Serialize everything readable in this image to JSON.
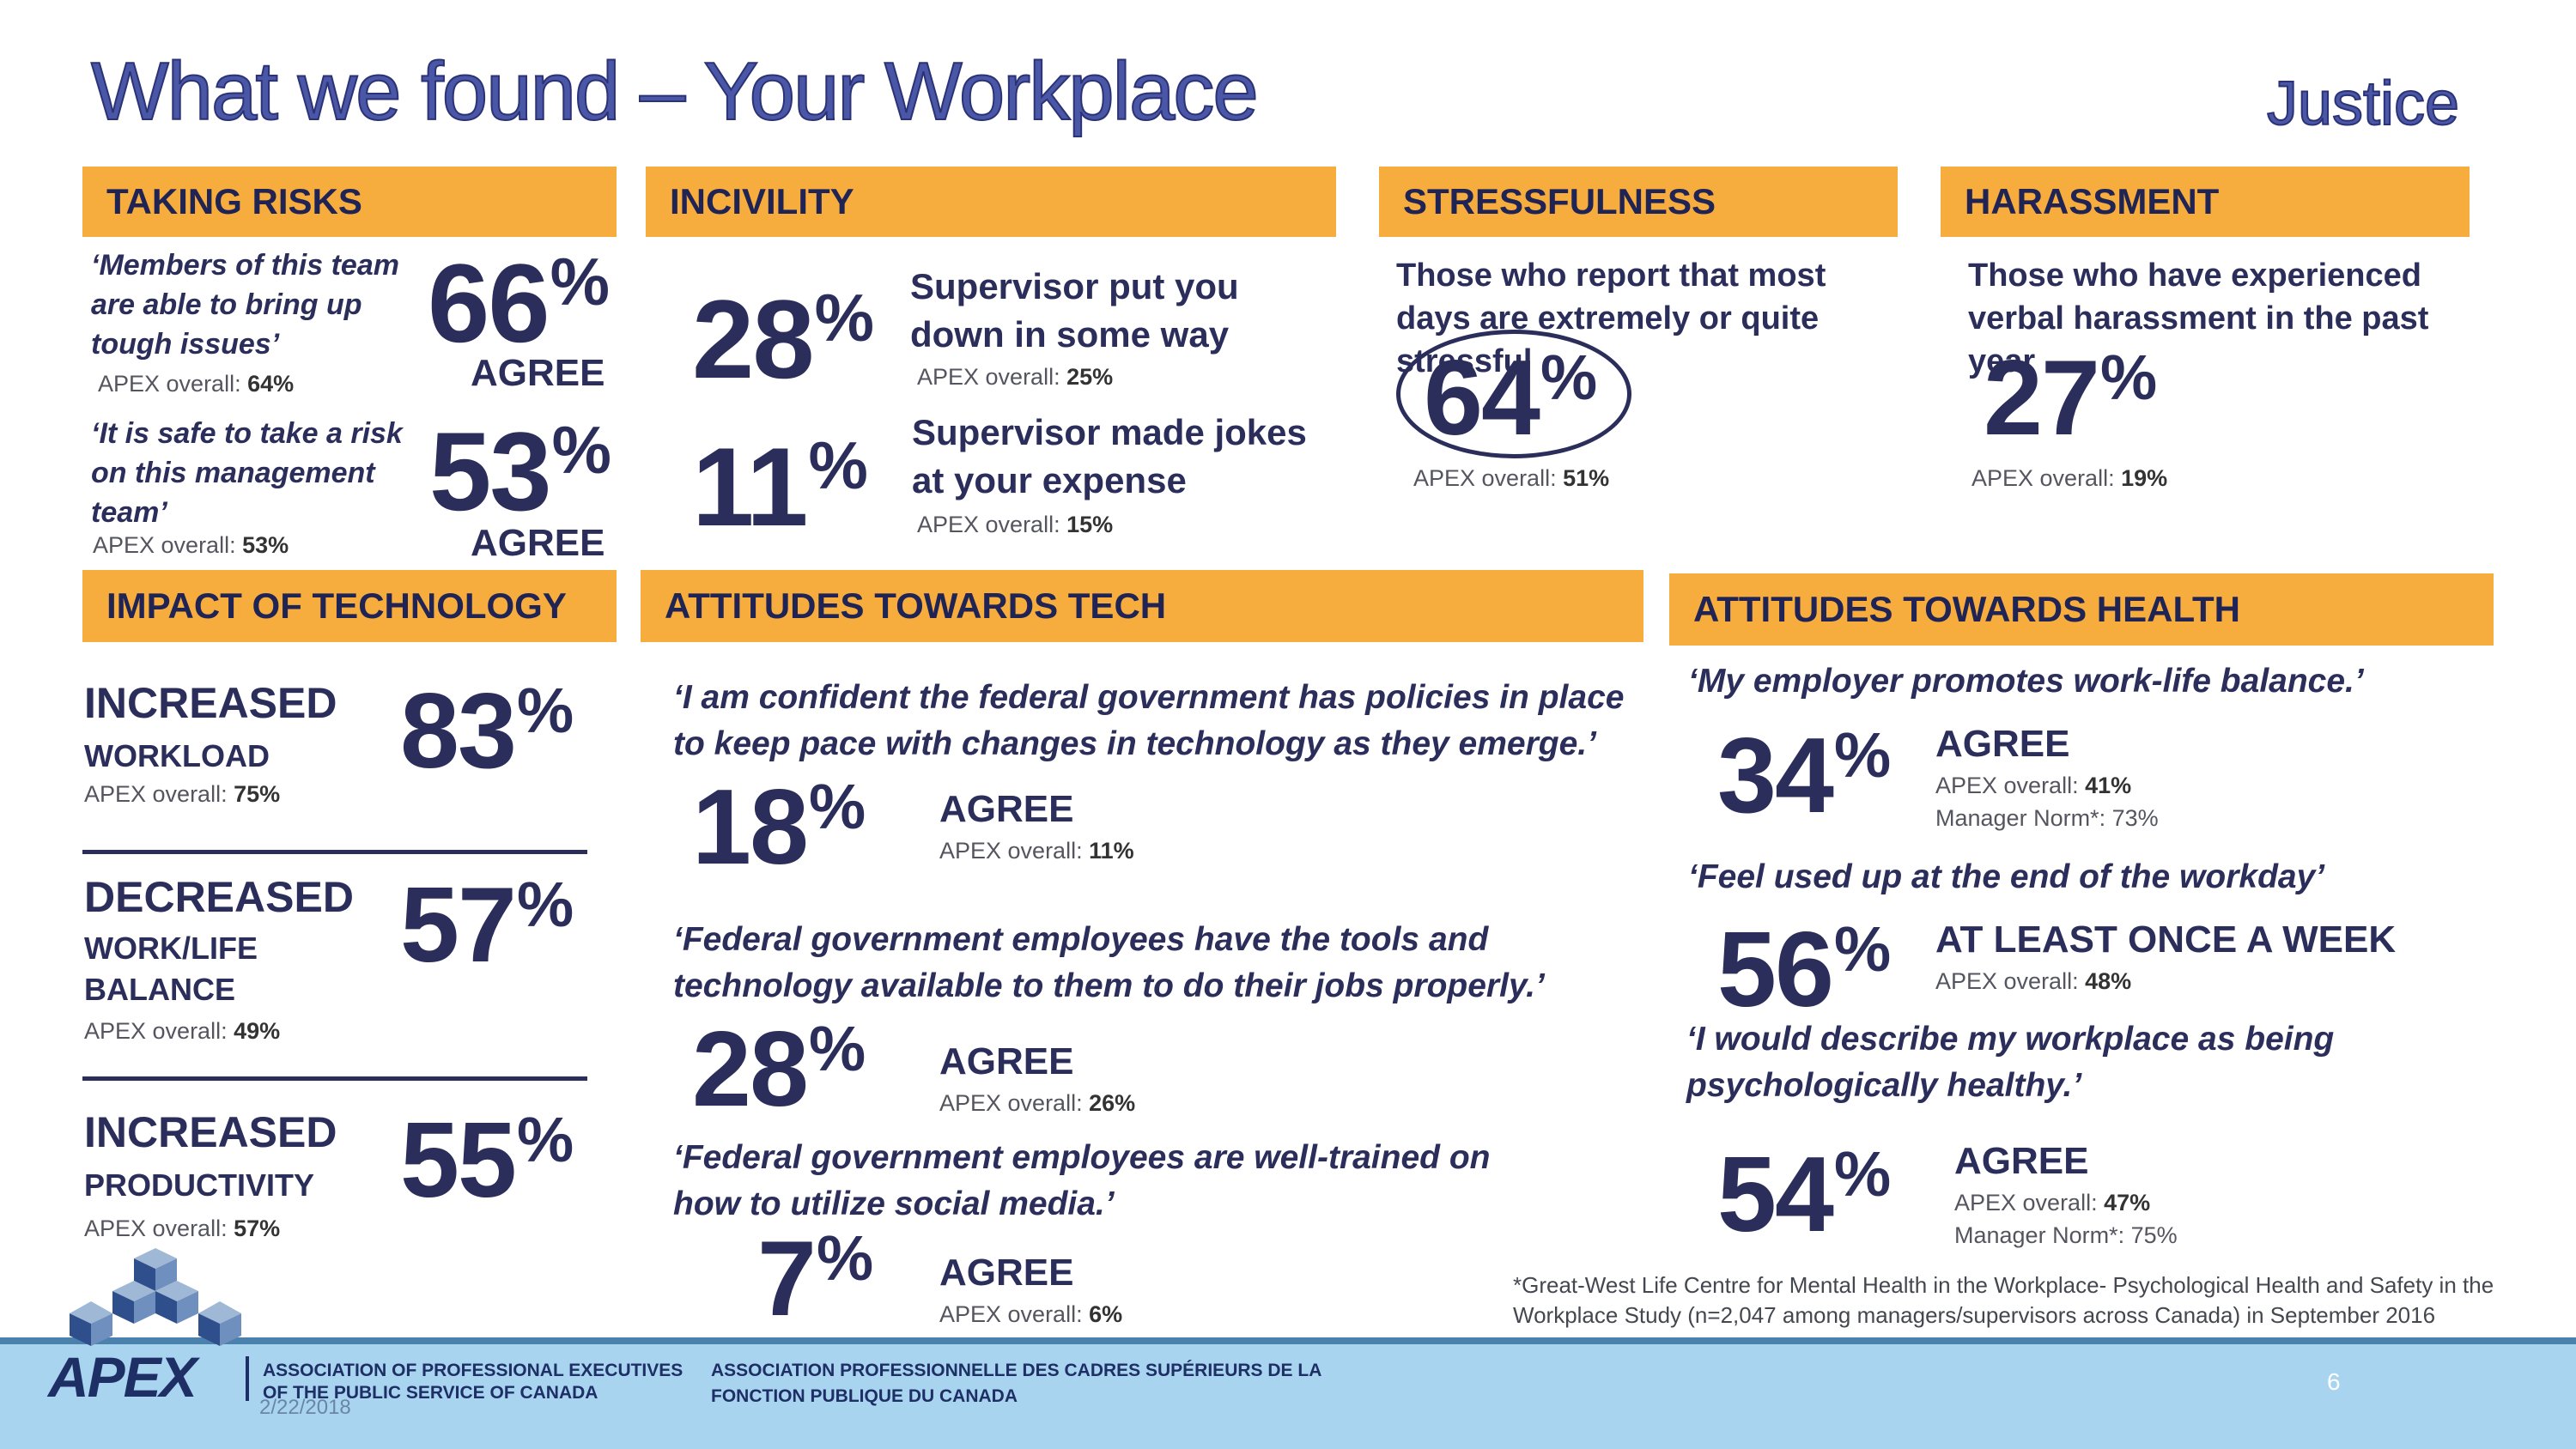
{
  "title": "What we found – Your Workplace",
  "department": "Justice",
  "taking_risks": {
    "header": "TAKING RISKS",
    "q1": {
      "quote": "‘Members of this team are able to bring up tough issues’",
      "pct": "66",
      "sym": "%",
      "agree": "AGREE",
      "apex_label": "APEX overall: ",
      "apex_value": "64%"
    },
    "q2": {
      "quote": "‘It is safe to take a risk on this management team’",
      "pct": "53",
      "sym": "%",
      "agree": "AGREE",
      "apex_label": "APEX overall: ",
      "apex_value": "53%"
    }
  },
  "incivility": {
    "header": "INCIVILITY",
    "q1": {
      "pct": "28",
      "sym": "%",
      "label": "Supervisor put you down in some way",
      "apex_label": "APEX overall: ",
      "apex_value": "25%"
    },
    "q2": {
      "pct": "11",
      "sym": "%",
      "label": "Supervisor made jokes at your expense",
      "apex_label": "APEX overall: ",
      "apex_value": "15%"
    }
  },
  "stressfulness": {
    "header": "STRESSFULNESS",
    "text": "Those who report that most days are extremely or quite stressful",
    "pct": "64",
    "sym": "%",
    "apex_label": "APEX overall: ",
    "apex_value": "51%"
  },
  "harassment": {
    "header": "HARASSMENT",
    "text": "Those who have experienced verbal harassment in the past year",
    "pct": "27",
    "sym": "%",
    "apex_label": "APEX overall: ",
    "apex_value": "19%"
  },
  "impact_tech": {
    "header": "IMPACT OF TECHNOLOGY",
    "items": [
      {
        "line1": "INCREASED",
        "line2": "WORKLOAD",
        "line3": "",
        "pct": "83",
        "sym": "%",
        "apex_label": "APEX overall: ",
        "apex_value": "75%"
      },
      {
        "line1": "DECREASED",
        "line2": "WORK/LIFE",
        "line3": "BALANCE",
        "pct": "57",
        "sym": "%",
        "apex_label": "APEX overall: ",
        "apex_value": "49%"
      },
      {
        "line1": "INCREASED",
        "line2": "PRODUCTIVITY",
        "line3": "",
        "pct": "55",
        "sym": "%",
        "apex_label": "APEX overall: ",
        "apex_value": "57%"
      }
    ]
  },
  "attitudes_tech": {
    "header": "ATTITUDES TOWARDS TECH",
    "items": [
      {
        "quote": "‘I am confident the federal government has policies in place to keep pace with changes in technology as they emerge.’",
        "pct": "18",
        "sym": "%",
        "agree": "AGREE",
        "apex_label": "APEX overall: ",
        "apex_value": "11%"
      },
      {
        "quote": "‘Federal government employees have the tools and technology available to them to do their jobs properly.’",
        "pct": "28",
        "sym": "%",
        "agree": "AGREE",
        "apex_label": "APEX overall: ",
        "apex_value": "26%"
      },
      {
        "quote": "‘Federal government employees are well-trained on how to utilize social media.’",
        "pct": "7",
        "sym": "%",
        "agree": "AGREE",
        "apex_label": "APEX overall: ",
        "apex_value": "6%"
      }
    ]
  },
  "attitudes_health": {
    "header": "ATTITUDES TOWARDS HEALTH",
    "items": [
      {
        "quote": "‘My employer promotes work-life balance.’",
        "pct": "34",
        "sym": "%",
        "agree": "AGREE",
        "apex_label": "APEX overall: ",
        "apex_value": "41%",
        "norm": "Manager Norm*: 73%"
      },
      {
        "quote": "‘Feel used up at the end of the workday’",
        "pct": "56",
        "sym": "%",
        "agree": "AT LEAST ONCE A WEEK",
        "apex_label": "APEX overall: ",
        "apex_value": "48%",
        "norm": ""
      },
      {
        "quote": "‘I would describe my workplace as being psychologically healthy.’",
        "pct": "54",
        "sym": "%",
        "agree": "AGREE",
        "apex_label": "APEX overall: ",
        "apex_value": "47%",
        "norm": "Manager Norm*: 75%"
      }
    ],
    "footnote": "*Great-West Life Centre for Mental Health in the Workplace- Psychological Health and Safety in the Workplace Study (n=2,047 among managers/supervisors across Canada) in September 2016"
  },
  "footer": {
    "logo_text": "APEX",
    "org_en_1": "ASSOCIATION OF PROFESSIONAL EXECUTIVES",
    "org_en_2": "OF THE PUBLIC SERVICE OF CANADA",
    "org_fr_1": "ASSOCIATION PROFESSIONNELLE DES CADRES SUPÉRIEURS DE LA",
    "org_fr_2": "FONCTION PUBLIQUE DU CANADA",
    "date": "2/22/2018",
    "page": "6"
  },
  "colors": {
    "accent": "#f7ac3e",
    "navy": "#2b2d5a",
    "title": "#4a56a6",
    "footer": "#a9d4f0"
  }
}
